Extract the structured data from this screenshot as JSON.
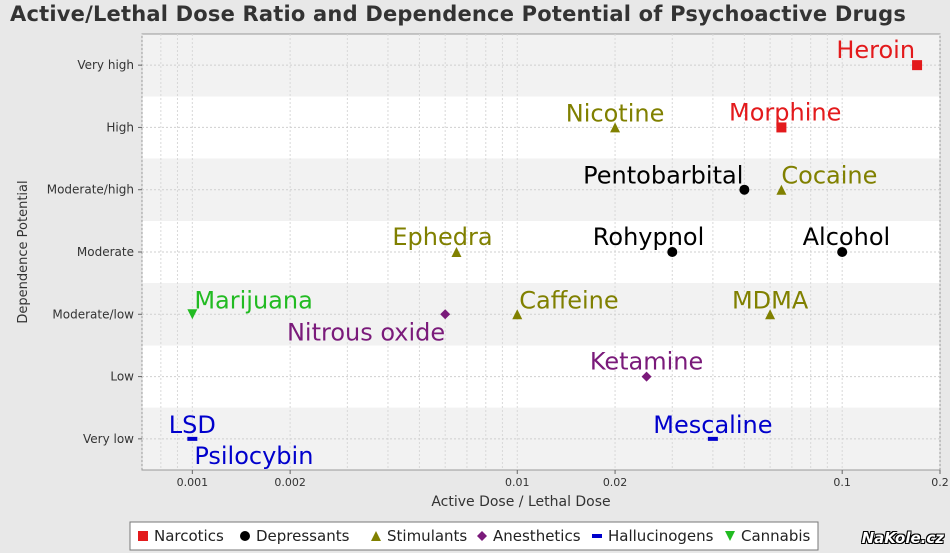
{
  "chart_data": {
    "type": "scatter",
    "title": "Active/Lethal Dose Ratio and Dependence Potential of Psychoactive Drugs",
    "xlabel": "Active Dose / Lethal Dose",
    "ylabel": "Dependence Potential",
    "x_scale": "log",
    "xlim": [
      0.0007,
      0.2
    ],
    "x_ticks": [
      {
        "value": 0.001,
        "label": "0.001"
      },
      {
        "value": 0.002,
        "label": "0.002"
      },
      {
        "value": 0.01,
        "label": "0.01"
      },
      {
        "value": 0.02,
        "label": "0.02"
      },
      {
        "value": 0.1,
        "label": "0.1"
      },
      {
        "value": 0.2,
        "label": "0.2"
      }
    ],
    "y_categories": [
      "Very low",
      "Low",
      "Moderate/low",
      "Moderate",
      "Moderate/high",
      "High",
      "Very high"
    ],
    "grid": true,
    "legend_position": "bottom",
    "series": [
      {
        "name": "Narcotics",
        "marker": "square",
        "color": "#e31a1c",
        "points": [
          {
            "label": "Heroin",
            "x": 0.17,
            "y": "Very high"
          },
          {
            "label": "Morphine",
            "x": 0.065,
            "y": "High"
          }
        ]
      },
      {
        "name": "Depressants",
        "marker": "circle",
        "color": "#000000",
        "points": [
          {
            "label": "Pentobarbital",
            "x": 0.05,
            "y": "Moderate/high"
          },
          {
            "label": "Rohypnol",
            "x": 0.03,
            "y": "Moderate"
          },
          {
            "label": "Alcohol",
            "x": 0.1,
            "y": "Moderate"
          }
        ]
      },
      {
        "name": "Stimulants",
        "marker": "triangle",
        "color": "#808000",
        "points": [
          {
            "label": "Nicotine",
            "x": 0.02,
            "y": "High"
          },
          {
            "label": "Cocaine",
            "x": 0.065,
            "y": "Moderate/high"
          },
          {
            "label": "Ephedra",
            "x": 0.0065,
            "y": "Moderate"
          },
          {
            "label": "Caffeine",
            "x": 0.01,
            "y": "Moderate/low"
          },
          {
            "label": "MDMA",
            "x": 0.06,
            "y": "Moderate/low"
          }
        ]
      },
      {
        "name": "Anesthetics",
        "marker": "diamond",
        "color": "#7a1a7a",
        "points": [
          {
            "label": "Nitrous oxide",
            "x": 0.006,
            "y": "Moderate/low"
          },
          {
            "label": "Ketamine",
            "x": 0.025,
            "y": "Low"
          }
        ]
      },
      {
        "name": "Hallucinogens",
        "marker": "dash",
        "color": "#0000cc",
        "points": [
          {
            "label": "LSD",
            "x": 0.001,
            "y": "Very low"
          },
          {
            "label": "Psilocybin",
            "x": 0.001,
            "y": "Very low"
          },
          {
            "label": "Mescaline",
            "x": 0.04,
            "y": "Very low"
          }
        ]
      },
      {
        "name": "Cannabis",
        "marker": "triangle-down",
        "color": "#22bb22",
        "points": [
          {
            "label": "Marijuana",
            "x": 0.001,
            "y": "Moderate/low"
          }
        ]
      }
    ]
  },
  "watermark": "NaKole.cz"
}
